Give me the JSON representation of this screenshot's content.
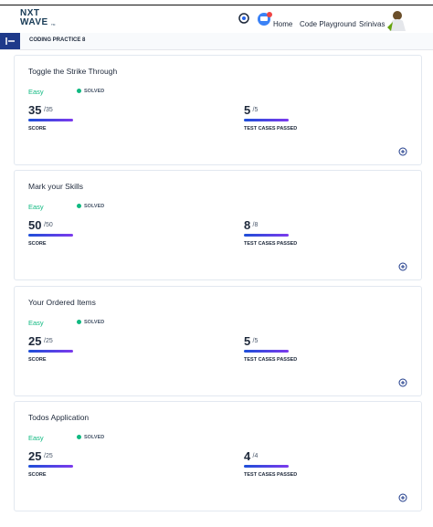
{
  "header": {
    "logo_top": "NXT",
    "logo_bottom": "WAVE",
    "logo_suffix": "TM",
    "nav": [
      "Home",
      "Code Playground"
    ],
    "user": "Srinivas"
  },
  "subheader": {
    "title": "CODING PRACTICE 8"
  },
  "cards": [
    {
      "title": "Toggle the Strike Through",
      "difficulty": "Easy",
      "status": "SOLVED",
      "score": 35,
      "score_total": "/35",
      "score_label": "SCORE",
      "tests": 5,
      "tests_total": "/5",
      "tests_label": "TEST CASES PASSED"
    },
    {
      "title": "Mark your Skills",
      "difficulty": "Easy",
      "status": "SOLVED",
      "score": 50,
      "score_total": "/50",
      "score_label": "SCORE",
      "tests": 8,
      "tests_total": "/8",
      "tests_label": "TEST CASES PASSED"
    },
    {
      "title": "Your Ordered Items",
      "difficulty": "Easy",
      "status": "SOLVED",
      "score": 25,
      "score_total": "/25",
      "score_label": "SCORE",
      "tests": 5,
      "tests_total": "/5",
      "tests_label": "TEST CASES PASSED"
    },
    {
      "title": "Todos Application",
      "difficulty": "Easy",
      "status": "SOLVED",
      "score": 25,
      "score_total": "/25",
      "score_label": "SCORE",
      "tests": 4,
      "tests_total": "/4",
      "tests_label": "TEST CASES PASSED"
    }
  ]
}
